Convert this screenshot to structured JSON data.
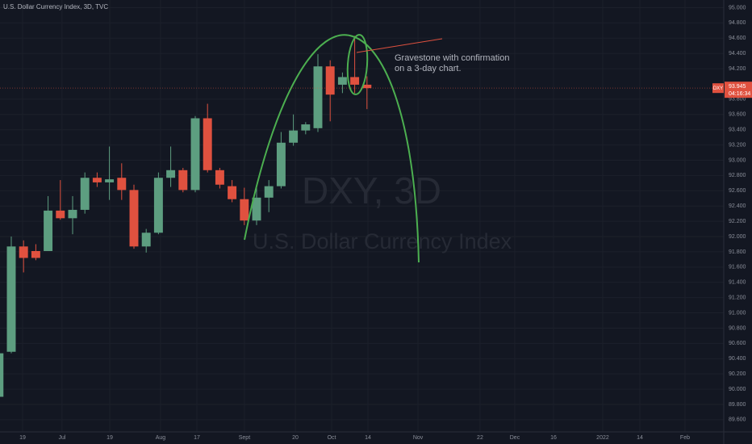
{
  "chart_data": {
    "type": "candlestick",
    "title": "U.S. Dollar Currency Index, 3D, TVC",
    "watermark_symbol": "DXY, 3D",
    "watermark_name": "U.S. Dollar Currency Index",
    "annotation": [
      "Gravestone with confirmation",
      "on a 3-day chart."
    ],
    "symbol": "DXY",
    "last_price": 93.945,
    "last_price_label": "93.945",
    "countdown": "04:16:34",
    "up_color": "#5d9e80",
    "down_color": "#e0513f",
    "x": [
      0,
      1,
      2,
      3,
      4,
      5,
      6,
      7,
      8,
      9,
      10,
      11,
      12,
      13,
      14,
      15,
      16,
      17,
      18,
      19,
      20,
      21,
      22,
      23,
      24,
      25,
      26,
      27,
      28,
      29,
      30
    ],
    "open": [
      89.9,
      90.49,
      91.87,
      91.81,
      91.81,
      92.34,
      92.24,
      92.35,
      92.77,
      92.71,
      92.77,
      92.61,
      91.87,
      92.05,
      92.77,
      92.87,
      92.61,
      93.55,
      92.87,
      92.66,
      92.49,
      92.21,
      92.51,
      92.66,
      93.23,
      93.39,
      93.42,
      94.23,
      93.99,
      94.09,
      93.99
    ],
    "high": [
      90.47,
      92.0,
      91.95,
      91.9,
      92.53,
      92.74,
      92.53,
      92.84,
      92.84,
      93.18,
      92.96,
      92.68,
      92.1,
      92.84,
      93.18,
      92.9,
      93.58,
      93.74,
      92.9,
      92.74,
      92.64,
      92.64,
      92.74,
      93.37,
      93.6,
      93.5,
      94.39,
      94.31,
      94.15,
      94.63,
      94.1
    ],
    "low": [
      89.84,
      90.47,
      91.53,
      91.69,
      91.84,
      92.22,
      92.03,
      92.3,
      92.65,
      92.48,
      92.48,
      91.84,
      91.79,
      92.03,
      92.65,
      92.58,
      92.58,
      92.84,
      92.63,
      92.45,
      92.15,
      92.15,
      92.32,
      92.63,
      93.19,
      93.34,
      93.37,
      93.51,
      93.88,
      93.88,
      93.67
    ],
    "close": [
      90.47,
      91.87,
      91.72,
      91.72,
      92.34,
      92.24,
      92.35,
      92.77,
      92.71,
      92.75,
      92.61,
      91.87,
      92.05,
      92.77,
      92.87,
      92.61,
      93.55,
      92.87,
      92.68,
      92.49,
      92.21,
      92.51,
      92.66,
      93.23,
      93.39,
      93.47,
      94.23,
      93.86,
      94.09,
      93.99,
      93.945
    ],
    "xlim": [
      0.08,
      59.09
    ],
    "xticks": [
      {
        "value": 1.92,
        "label": "19"
      },
      {
        "value": 5.14,
        "label": "Jul"
      },
      {
        "value": 9.03,
        "label": "19"
      },
      {
        "value": 13.17,
        "label": "Aug"
      },
      {
        "value": 16.13,
        "label": "17"
      },
      {
        "value": 20.01,
        "label": "Sept"
      },
      {
        "value": 24.16,
        "label": "20"
      },
      {
        "value": 27.12,
        "label": "Oct"
      },
      {
        "value": 30.08,
        "label": "14"
      },
      {
        "value": 34.16,
        "label": "Nov"
      },
      {
        "value": 39.22,
        "label": "22"
      },
      {
        "value": 42.05,
        "label": "Dec"
      },
      {
        "value": 45.21,
        "label": "16"
      },
      {
        "value": 49.22,
        "label": "2022"
      },
      {
        "value": 52.25,
        "label": "14"
      },
      {
        "value": 55.93,
        "label": "Feb"
      }
    ],
    "ylim": [
      89.44,
      95.1
    ],
    "yticks": [
      {
        "value": 89.6,
        "label": "89.600"
      },
      {
        "value": 89.8,
        "label": "89.800"
      },
      {
        "value": 90.0,
        "label": "90.000"
      },
      {
        "value": 90.2,
        "label": "90.200"
      },
      {
        "value": 90.4,
        "label": "90.400"
      },
      {
        "value": 90.6,
        "label": "90.600"
      },
      {
        "value": 90.8,
        "label": "90.800"
      },
      {
        "value": 91.0,
        "label": "91.000"
      },
      {
        "value": 91.2,
        "label": "91.200"
      },
      {
        "value": 91.4,
        "label": "91.400"
      },
      {
        "value": 91.6,
        "label": "91.600"
      },
      {
        "value": 91.8,
        "label": "91.800"
      },
      {
        "value": 92.0,
        "label": "92.000"
      },
      {
        "value": 92.2,
        "label": "92.200"
      },
      {
        "value": 92.4,
        "label": "92.400"
      },
      {
        "value": 92.6,
        "label": "92.600"
      },
      {
        "value": 92.8,
        "label": "92.800"
      },
      {
        "value": 93.0,
        "label": "93.000"
      },
      {
        "value": 93.2,
        "label": "93.200"
      },
      {
        "value": 93.4,
        "label": "93.400"
      },
      {
        "value": 93.6,
        "label": "93.600"
      },
      {
        "value": 93.8,
        "label": "93.800"
      },
      {
        "value": 94.2,
        "label": "94.200"
      },
      {
        "value": 94.4,
        "label": "94.400"
      },
      {
        "value": 94.6,
        "label": "94.600"
      },
      {
        "value": 94.8,
        "label": "94.800"
      },
      {
        "value": 95.0,
        "label": "95.000"
      }
    ],
    "grid": true
  }
}
